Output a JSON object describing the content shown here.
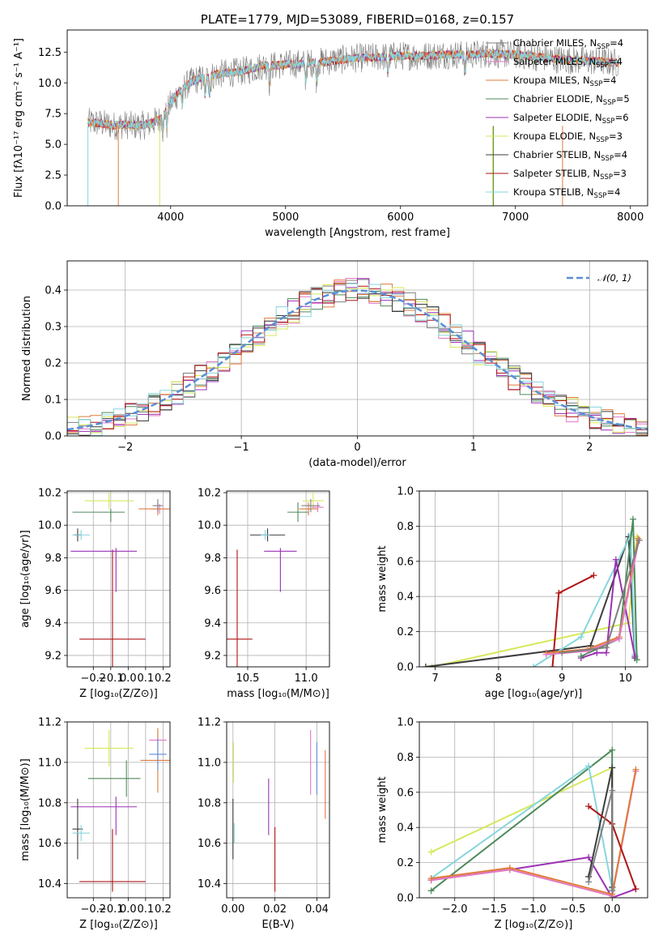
{
  "colors": {
    "Chabrier MILES": "#7f7f7f",
    "Salpeter MILES": "#e377c2",
    "Kroupa MILES": "#e07b39",
    "Chabrier ELODIE": "#4f8a5b",
    "Salpeter ELODIE": "#9b30b5",
    "Kroupa ELODIE": "#d7e85a",
    "Chabrier STELIB": "#3d3d3d",
    "Salpeter STELIB": "#b01515",
    "Kroupa STELIB": "#86d6dd",
    "normal": "#5b8ed8"
  },
  "chart_data": [
    {
      "id": "spectrum",
      "type": "line",
      "title": "PLATE=1779, MJD=53089, FIBERID=0168, z=0.157",
      "xlabel": "wavelength [Angstrom, rest frame]",
      "ylabel": "Flux [fλ10⁻¹⁷ erg cm⁻² s⁻¹ A⁻¹]",
      "xlim": [
        3100,
        8150
      ],
      "ylim": [
        0,
        14.3
      ],
      "xticks": [
        4000,
        5000,
        6000,
        7000,
        8000
      ],
      "yticks": [
        0.0,
        2.5,
        5.0,
        7.5,
        10.0,
        12.5
      ],
      "legend_position": "top-right",
      "legend": [
        {
          "label": "Chabrier MILES, N",
          "sub": "SSP",
          "suffix": "=4"
        },
        {
          "label": "Salpeter MILES, N",
          "sub": "SSP",
          "suffix": "=4"
        },
        {
          "label": "Kroupa MILES, N",
          "sub": "SSP",
          "suffix": "=4"
        },
        {
          "label": "Chabrier ELODIE, N",
          "sub": "SSP",
          "suffix": "=5"
        },
        {
          "label": "Salpeter ELODIE, N",
          "sub": "SSP",
          "suffix": "=6"
        },
        {
          "label": "Kroupa ELODIE, N",
          "sub": "SSP",
          "suffix": "=3"
        },
        {
          "label": "Chabrier STELIB, N",
          "sub": "SSP",
          "suffix": "=4"
        },
        {
          "label": "Salpeter STELIB, N",
          "sub": "SSP",
          "suffix": "=3"
        },
        {
          "label": "Kroupa STELIB, N",
          "sub": "SSP",
          "suffix": "=4"
        }
      ],
      "continuum": {
        "x": [
          3280,
          3400,
          3500,
          3600,
          3700,
          3800,
          3900,
          4000,
          4100,
          4200,
          4300,
          4400,
          4500,
          4600,
          4700,
          4800,
          4900,
          5000,
          5200,
          5400,
          5600,
          5800,
          6000,
          6200,
          6400,
          6600,
          6800,
          7000,
          7200,
          7400,
          7600,
          7800,
          7900
        ],
        "y": [
          6.8,
          6.7,
          6.5,
          6.6,
          6.5,
          6.6,
          7.0,
          8.3,
          9.6,
          10.2,
          10.4,
          10.7,
          10.8,
          10.9,
          11.1,
          11.4,
          11.4,
          11.5,
          11.6,
          11.8,
          12.0,
          12.1,
          12.2,
          12.2,
          12.3,
          12.3,
          12.4,
          12.3,
          12.1,
          11.9,
          11.8,
          11.7,
          11.6
        ]
      },
      "series_order": [
        "Chabrier MILES",
        "Kroupa ELODIE",
        "Salpeter STELIB",
        "Salpeter ELODIE",
        "Kroupa MILES",
        "Kroupa STELIB"
      ]
    },
    {
      "id": "residuals",
      "type": "histogram",
      "xlabel": "(data-model)/error",
      "ylabel": "Normed distribution",
      "xlim": [
        -2.5,
        2.5
      ],
      "ylim": [
        0,
        0.48
      ],
      "xticks": [
        -2,
        -1,
        0,
        1,
        2
      ],
      "yticks": [
        0.0,
        0.1,
        0.2,
        0.3,
        0.4
      ],
      "grid": true,
      "legend_position": "top-right",
      "legend": [
        "𝒩(0, 1)"
      ],
      "bin_width": 0.1,
      "bin_start": -2.5
    },
    {
      "id": "age_vs_Z",
      "type": "errorbar",
      "xlabel": "Z [log₁₀(Z/Z⊙)]",
      "ylabel": "age  [log₁₀(age/yr)]",
      "xlim": [
        -0.35,
        0.24
      ],
      "ylim": [
        9.13,
        10.21
      ],
      "xticks": [
        -0.2,
        -0.1,
        0.0,
        0.1,
        0.2
      ],
      "yticks": [
        9.2,
        9.4,
        9.6,
        9.8,
        10.0,
        10.2
      ],
      "grid": true,
      "points": [
        {
          "model": "Salpeter STELIB",
          "x": -0.09,
          "y": 9.3,
          "xerr": 0.19,
          "yerr": [
            0.18,
            0.55
          ]
        },
        {
          "model": "Salpeter ELODIE",
          "x": -0.07,
          "y": 9.84,
          "xerr": [
            0.26,
            0.12
          ],
          "yerr": [
            0.25,
            0.02
          ]
        },
        {
          "model": "Chabrier ELODIE",
          "x": -0.1,
          "y": 10.08,
          "xerr": [
            0.22,
            0.08
          ],
          "yerr": [
            0.06,
            0.02
          ]
        },
        {
          "model": "Chabrier STELIB",
          "x": -0.29,
          "y": 9.94,
          "xerr": 0.02,
          "yerr": 0.04
        },
        {
          "model": "Kroupa STELIB",
          "x": -0.27,
          "y": 9.94,
          "xerr": 0.05,
          "yerr": 0.03
        },
        {
          "model": "Kroupa ELODIE",
          "x": -0.11,
          "y": 10.15,
          "xerr": 0.14,
          "yerr": 0.05
        },
        {
          "model": "Salpeter MILES",
          "x": 0.18,
          "y": 10.1,
          "xerr": 0.05,
          "yerr": 0.03
        },
        {
          "model": "Kroupa MILES",
          "x": 0.17,
          "y": 10.1,
          "xerr": 0.11,
          "yerr": 0.04
        },
        {
          "model": "Chabrier MILES",
          "x": 0.17,
          "y": 10.12,
          "xerr": 0.03,
          "yerr": 0.04
        }
      ]
    },
    {
      "id": "age_vs_mass",
      "type": "errorbar",
      "xlabel": "mass [log₁₀(M/M⊙)]",
      "ylabel": "",
      "xlim": [
        10.32,
        11.2
      ],
      "ylim": [
        9.13,
        10.21
      ],
      "xticks": [
        10.5,
        11.0
      ],
      "yticks": [
        9.2,
        9.4,
        9.6,
        9.8,
        10.0,
        10.2
      ],
      "grid": true,
      "points": [
        {
          "model": "Salpeter STELIB",
          "x": 10.41,
          "y": 9.3,
          "xerr": 0.13,
          "yerr": [
            0.18,
            0.55
          ]
        },
        {
          "model": "Salpeter ELODIE",
          "x": 10.78,
          "y": 9.84,
          "xerr": 0.14,
          "yerr": [
            0.25,
            0.02
          ]
        },
        {
          "model": "Chabrier STELIB",
          "x": 10.67,
          "y": 9.94,
          "xerr": 0.15,
          "yerr": 0.04
        },
        {
          "model": "Kroupa STELIB",
          "x": 10.65,
          "y": 9.94,
          "xerr": 0.04,
          "yerr": 0.03
        },
        {
          "model": "Chabrier ELODIE",
          "x": 10.93,
          "y": 10.08,
          "xerr": 0.09,
          "yerr": 0.06
        },
        {
          "model": "Kroupa ELODIE",
          "x": 11.06,
          "y": 10.15,
          "xerr": 0.09,
          "yerr": 0.05
        },
        {
          "model": "Salpeter MILES",
          "x": 11.1,
          "y": 10.11,
          "xerr": 0.05,
          "yerr": 0.03
        },
        {
          "model": "Kroupa MILES",
          "x": 11.02,
          "y": 10.1,
          "xerr": 0.08,
          "yerr": 0.04
        },
        {
          "model": "Chabrier MILES",
          "x": 11.04,
          "y": 10.12,
          "xerr": 0.08,
          "yerr": 0.04
        }
      ]
    },
    {
      "id": "weight_vs_age",
      "type": "line",
      "xlabel": "age  [log₁₀(age/yr)]",
      "ylabel": "mass weight",
      "xlim": [
        6.75,
        10.35
      ],
      "ylim": [
        0,
        1.0
      ],
      "xticks": [
        7,
        8,
        9,
        10
      ],
      "yticks": [
        0.0,
        0.2,
        0.4,
        0.6,
        0.8,
        1.0
      ],
      "grid": true,
      "series": [
        {
          "model": "Kroupa ELODIE",
          "x": [
            6.95,
            10.05,
            10.18
          ],
          "y": [
            0.0,
            0.25,
            0.74
          ]
        },
        {
          "model": "Chabrier STELIB",
          "x": [
            6.85,
            9.45,
            10.05,
            10.15
          ],
          "y": [
            0.0,
            0.12,
            0.74,
            0.05
          ]
        },
        {
          "model": "Kroupa STELIB",
          "x": [
            8.55,
            9.3,
            10.08,
            10.15
          ],
          "y": [
            0.0,
            0.17,
            0.75,
            0.07
          ]
        },
        {
          "model": "Salpeter ELODIE",
          "x": [
            9.3,
            9.55,
            9.7,
            9.85,
            10.15
          ],
          "y": [
            0.05,
            0.08,
            0.08,
            0.61,
            0.06
          ]
        },
        {
          "model": "Chabrier ELODIE",
          "x": [
            9.3,
            9.9,
            10.12,
            10.18
          ],
          "y": [
            0.06,
            0.16,
            0.84,
            0.04
          ]
        },
        {
          "model": "Salpeter STELIB",
          "x": [
            8.85,
            8.95,
            9.5
          ],
          "y": [
            0.0,
            0.42,
            0.52
          ]
        },
        {
          "model": "Kroupa MILES",
          "x": [
            8.75,
            9.4,
            9.9,
            10.2
          ],
          "y": [
            0.08,
            0.1,
            0.17,
            0.73
          ]
        },
        {
          "model": "Salpeter MILES",
          "x": [
            8.75,
            9.4,
            9.9,
            10.21
          ],
          "y": [
            0.07,
            0.09,
            0.16,
            0.72
          ]
        },
        {
          "model": "Chabrier MILES",
          "x": [
            9.0,
            9.7,
            10.22
          ],
          "y": [
            0.08,
            0.11,
            0.72
          ]
        }
      ]
    },
    {
      "id": "mass_vs_Z",
      "type": "errorbar",
      "xlabel": "Z [log₁₀(Z/Z⊙)]",
      "ylabel": "mass [log₁₀(M/M⊙)]",
      "xlim": [
        -0.35,
        0.24
      ],
      "ylim": [
        10.33,
        11.2
      ],
      "xticks": [
        -0.2,
        -0.1,
        0.0,
        0.1,
        0.2
      ],
      "yticks": [
        10.4,
        10.6,
        10.8,
        11.0,
        11.2
      ],
      "grid": true,
      "points": [
        {
          "model": "Salpeter STELIB",
          "x": -0.09,
          "y": 10.41,
          "xerr": 0.19,
          "yerr": [
            0.05,
            0.26
          ]
        },
        {
          "model": "Salpeter ELODIE",
          "x": -0.07,
          "y": 10.78,
          "xerr": [
            0.26,
            0.12
          ],
          "yerr": [
            0.14,
            0.05
          ]
        },
        {
          "model": "Chabrier STELIB",
          "x": -0.29,
          "y": 10.67,
          "xerr": 0.03,
          "yerr": 0.15
        },
        {
          "model": "Kroupa STELIB",
          "x": -0.27,
          "y": 10.65,
          "xerr": 0.05,
          "yerr": 0.04
        },
        {
          "model": "Chabrier ELODIE",
          "x": -0.01,
          "y": 10.92,
          "xerr": [
            0.22,
            0.08
          ],
          "yerr": 0.09
        },
        {
          "model": "Kroupa ELODIE",
          "x": -0.11,
          "y": 11.07,
          "xerr": 0.14,
          "yerr": 0.09
        },
        {
          "model": "Salpeter MILES",
          "x": 0.17,
          "y": 11.11,
          "xerr": 0.05,
          "yerr": 0.05
        },
        {
          "model": "Kroupa MILES",
          "x": 0.17,
          "y": 11.01,
          "xerr": 0.1,
          "yerr": 0.16
        },
        {
          "model": "normal",
          "x": 0.17,
          "y": 11.04,
          "xerr": 0.05,
          "yerr": 0.08
        }
      ]
    },
    {
      "id": "mass_vs_ebv",
      "type": "errorbar",
      "xlabel": "E(B-V)",
      "ylabel": "",
      "xlim": [
        -0.003,
        0.046
      ],
      "ylim": [
        10.33,
        11.2
      ],
      "xticks": [
        0.0,
        0.02,
        0.04
      ],
      "yticks": [
        10.4,
        10.6,
        10.8,
        11.0,
        11.2
      ],
      "grid": true,
      "points": [
        {
          "model": "Chabrier STELIB",
          "x": 0.0,
          "y": 10.67,
          "xerr": 0,
          "yerr": 0.15
        },
        {
          "model": "Kroupa ELODIE",
          "x": 0.0003,
          "y": 11.0,
          "xerr": 0,
          "yerr": 0.1
        },
        {
          "model": "Kroupa STELIB",
          "x": 0.0006,
          "y": 10.65,
          "xerr": 0,
          "yerr": 0.05
        },
        {
          "model": "Salpeter ELODIE",
          "x": 0.017,
          "y": 10.78,
          "xerr": 0,
          "yerr": 0.14
        },
        {
          "model": "Salpeter STELIB",
          "x": 0.02,
          "y": 10.41,
          "xerr": 0,
          "yerr": [
            0.05,
            0.27
          ]
        },
        {
          "model": "Salpeter MILES",
          "x": 0.037,
          "y": 11.0,
          "xerr": 0,
          "yerr": 0.16
        },
        {
          "model": "normal",
          "x": 0.04,
          "y": 10.97,
          "xerr": 0,
          "yerr": 0.13
        },
        {
          "model": "Kroupa MILES",
          "x": 0.044,
          "y": 10.89,
          "xerr": 0,
          "yerr": 0.17
        }
      ]
    },
    {
      "id": "weight_vs_Z",
      "type": "line",
      "xlabel": "Z [log₁₀(Z/Z⊙)]",
      "ylabel": "mass weight",
      "xlim": [
        -2.45,
        0.45
      ],
      "ylim": [
        0,
        1.0
      ],
      "xticks": [
        -2.0,
        -1.5,
        -1.0,
        -0.5,
        0.0
      ],
      "yticks": [
        0.0,
        0.2,
        0.4,
        0.6,
        0.8,
        1.0
      ],
      "grid": true,
      "series": [
        {
          "model": "Kroupa ELODIE",
          "x": [
            -2.3,
            0.0,
            0.0
          ],
          "y": [
            0.26,
            0.74,
            0.05
          ]
        },
        {
          "model": "Chabrier ELODIE",
          "x": [
            -2.3,
            0.0,
            0.0
          ],
          "y": [
            0.04,
            0.84,
            0.06
          ]
        },
        {
          "model": "Salpeter ELODIE",
          "x": [
            -2.3,
            -1.3,
            -0.3,
            0.0,
            0.3
          ],
          "y": [
            0.1,
            0.16,
            0.23,
            0.0,
            0.05
          ]
        },
        {
          "model": "Kroupa STELIB",
          "x": [
            -2.3,
            -0.3,
            0.0,
            0.0
          ],
          "y": [
            0.11,
            0.75,
            0.05,
            0.0
          ]
        },
        {
          "model": "Chabrier STELIB",
          "x": [
            -0.3,
            0.0,
            0.0
          ],
          "y": [
            0.12,
            0.74,
            0.06
          ]
        },
        {
          "model": "Salpeter MILES",
          "x": [
            -2.3,
            -1.3,
            0.0,
            0.3
          ],
          "y": [
            0.1,
            0.16,
            0.01,
            0.72
          ]
        },
        {
          "model": "Kroupa MILES",
          "x": [
            -2.3,
            -1.3,
            0.0,
            0.3
          ],
          "y": [
            0.11,
            0.17,
            0.02,
            0.73
          ]
        },
        {
          "model": "Salpeter STELIB",
          "x": [
            -0.3,
            0.0,
            0.3
          ],
          "y": [
            0.52,
            0.42,
            0.05
          ]
        },
        {
          "model": "Chabrier MILES",
          "x": [
            -0.3,
            0.0,
            0.0
          ],
          "y": [
            0.09,
            0.61,
            0.04
          ]
        }
      ]
    }
  ]
}
